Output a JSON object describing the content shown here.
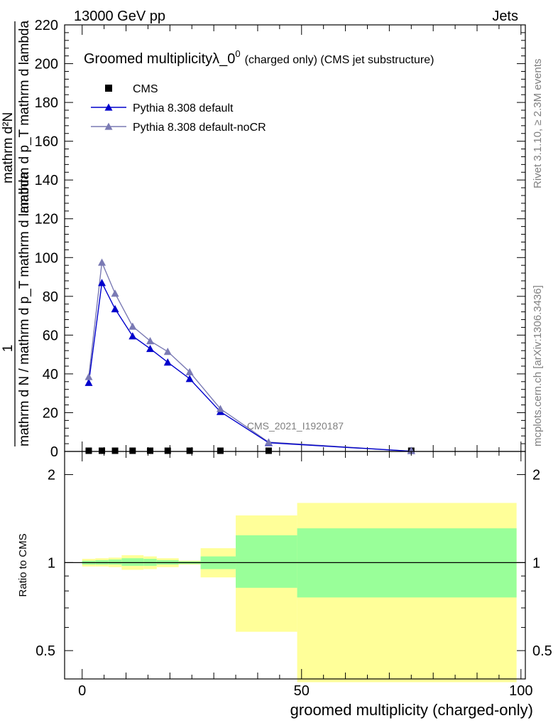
{
  "header": {
    "energy_label": "13000 GeV pp",
    "category_label": "Jets"
  },
  "side_labels": {
    "rivet": "Rivet 3.1.10, ≥ 2.3M events",
    "mcplots": "mcplots.cern.ch [arXiv:1306.3436]"
  },
  "chart_data": [
    {
      "type": "line",
      "title": "Groomed multiplicityλ_0",
      "title_sup": "0",
      "title_suffix": "(charged only) (CMS jet substructure)",
      "ylabel": "1 / mathrm d N / mathrm d p_T mathrm d lambda · mathrm d²N / mathrm d p_T mathrm d lambda",
      "ylabel_top": "1",
      "ylabel_bottom": "mathrm d N / mathrm d p_T mathrm d lambda",
      "ylabel_right_num": "mathrm d²N",
      "ylabel_right_den": "mathrm d p_T mathrm d lambda",
      "xlim": [
        -4,
        101
      ],
      "ylim": [
        0,
        220
      ],
      "yticks": [
        0,
        20,
        40,
        60,
        80,
        100,
        120,
        140,
        160,
        180,
        200,
        220
      ],
      "watermark": "CMS_2021_I1920187",
      "legend_position": "top-left",
      "series": [
        {
          "name": "CMS",
          "color": "#000000",
          "marker": "square",
          "x": [
            1.5,
            4.5,
            7.5,
            11.5,
            15.5,
            19.5,
            24.5,
            31.5,
            42.5,
            75.0
          ],
          "y": [
            0.05,
            0.05,
            0.05,
            0.05,
            0.05,
            0.05,
            0.05,
            0.05,
            0.05,
            0.05
          ]
        },
        {
          "name": "Pythia 8.308 default",
          "color": "#0000cc",
          "marker": "triangle",
          "x": [
            1.5,
            4.5,
            7.5,
            11.5,
            15.5,
            19.5,
            24.5,
            31.5,
            42.5,
            75.0
          ],
          "y": [
            35.5,
            87.0,
            73.5,
            59.5,
            53.0,
            46.0,
            37.5,
            20.5,
            4.5,
            0.1
          ]
        },
        {
          "name": "Pythia 8.308 default-noCR",
          "color": "#7a7ab4",
          "marker": "triangle",
          "x": [
            1.5,
            4.5,
            7.5,
            11.5,
            15.5,
            19.5,
            24.5,
            31.5,
            42.5,
            75.0
          ],
          "y": [
            38.5,
            97.5,
            81.5,
            64.5,
            57.0,
            51.5,
            41.0,
            22.0,
            4.8,
            0.1
          ]
        }
      ]
    },
    {
      "type": "area",
      "ylabel": "Ratio to CMS",
      "xlabel": "groomed multiplicity (charged-only)",
      "xlim": [
        -4,
        101
      ],
      "xticks": [
        0,
        50,
        100
      ],
      "ylim": [
        0.4,
        2.4
      ],
      "scale": "log",
      "yticks": [
        0.5,
        1,
        2
      ],
      "reference": 1,
      "bins": [
        {
          "lo": 0,
          "hi": 3,
          "stat_lo": 0.985,
          "stat_hi": 1.015,
          "tot_lo": 0.97,
          "tot_hi": 1.03
        },
        {
          "lo": 3,
          "hi": 6,
          "stat_lo": 0.985,
          "stat_hi": 1.02,
          "tot_lo": 0.97,
          "tot_hi": 1.035
        },
        {
          "lo": 6,
          "hi": 9,
          "stat_lo": 0.985,
          "stat_hi": 1.025,
          "tot_lo": 0.965,
          "tot_hi": 1.04
        },
        {
          "lo": 9,
          "hi": 14,
          "stat_lo": 0.975,
          "stat_hi": 1.035,
          "tot_lo": 0.945,
          "tot_hi": 1.06
        },
        {
          "lo": 14,
          "hi": 17,
          "stat_lo": 0.975,
          "stat_hi": 1.03,
          "tot_lo": 0.95,
          "tot_hi": 1.05
        },
        {
          "lo": 17,
          "hi": 22,
          "stat_lo": 0.985,
          "stat_hi": 1.02,
          "tot_lo": 0.965,
          "tot_hi": 1.035
        },
        {
          "lo": 22,
          "hi": 27,
          "stat_lo": 0.99,
          "stat_hi": 1.01,
          "tot_lo": 0.985,
          "tot_hi": 1.015
        },
        {
          "lo": 27,
          "hi": 35,
          "stat_lo": 0.95,
          "stat_hi": 1.05,
          "tot_lo": 0.89,
          "tot_hi": 1.12
        },
        {
          "lo": 35,
          "hi": 49,
          "stat_lo": 0.82,
          "stat_hi": 1.24,
          "tot_lo": 0.58,
          "tot_hi": 1.45
        },
        {
          "lo": 49,
          "hi": 99,
          "stat_lo": 0.76,
          "stat_hi": 1.31,
          "tot_lo": 0.39,
          "tot_hi": 1.6
        }
      ]
    }
  ]
}
